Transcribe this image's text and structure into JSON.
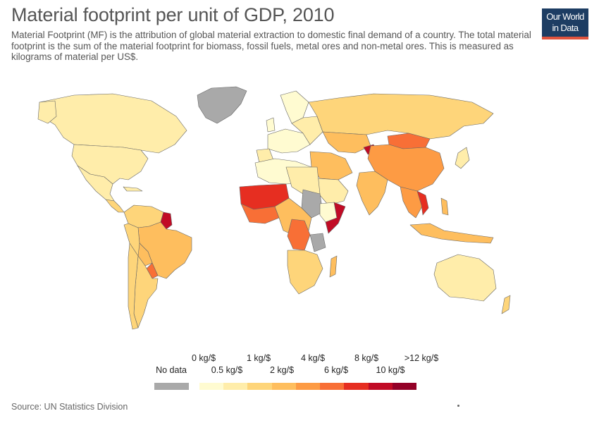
{
  "header": {
    "title": "Material footprint per unit of GDP, 2010",
    "subtitle": "Material Footprint (MF) is the attribution of global material extraction to domestic final demand of a country. The total material footprint is the sum of the material footprint for biomass, fossil fuels, metal ores and non-metal ores. This is measured as kilograms of material per US$."
  },
  "logo": {
    "line1": "Our World",
    "line2": "in Data",
    "bg_color": "#1d3d63",
    "accent_color": "#e0543e"
  },
  "legend": {
    "no_data": {
      "label": "No data",
      "color": "#a9a9a9"
    },
    "labels_top": [
      "0 kg/$",
      "1 kg/$",
      "4 kg/$",
      "8 kg/$",
      ">12 kg/$"
    ],
    "labels_bottom": [
      "0.5 kg/$",
      "2 kg/$",
      "6 kg/$",
      "10 kg/$"
    ],
    "colors": [
      "#fffbd1",
      "#ffedaa",
      "#fed57a",
      "#febe5e",
      "#fd9b44",
      "#f86f36",
      "#e62e21",
      "#c10b25",
      "#930027"
    ]
  },
  "source": "Source: UN Statistics Division"
}
